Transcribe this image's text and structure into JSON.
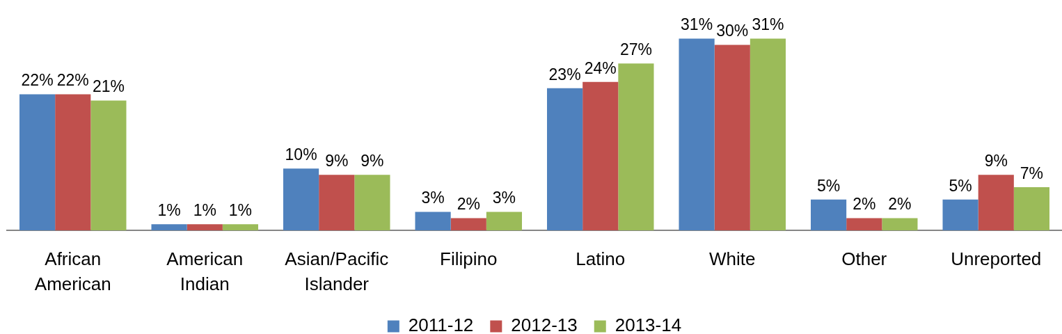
{
  "chart_data": {
    "type": "bar",
    "categories": [
      "African American",
      "American Indian",
      "Asian/Pacific Islander",
      "Filipino",
      "Latino",
      "White",
      "Other",
      "Unreported"
    ],
    "series": [
      {
        "name": "2011-12",
        "color": "#4f81bd",
        "values": [
          22,
          1,
          10,
          3,
          23,
          31,
          5,
          5
        ],
        "value_labels": [
          "22%",
          "1%",
          "10%",
          "3%",
          "23%",
          "31%",
          "5%",
          "5%"
        ]
      },
      {
        "name": "2012-13",
        "color": "#c0504d",
        "values": [
          22,
          1,
          9,
          2,
          24,
          30,
          2,
          9
        ],
        "value_labels": [
          "22%",
          "1%",
          "9%",
          "2%",
          "24%",
          "30%",
          "2%",
          "9%"
        ]
      },
      {
        "name": "2013-14",
        "color": "#9bbb59",
        "values": [
          21,
          1,
          9,
          3,
          27,
          31,
          2,
          7
        ],
        "value_labels": [
          "21%",
          "1%",
          "9%",
          "3%",
          "27%",
          "31%",
          "2%",
          "7%"
        ]
      }
    ],
    "legend": "bottom"
  }
}
